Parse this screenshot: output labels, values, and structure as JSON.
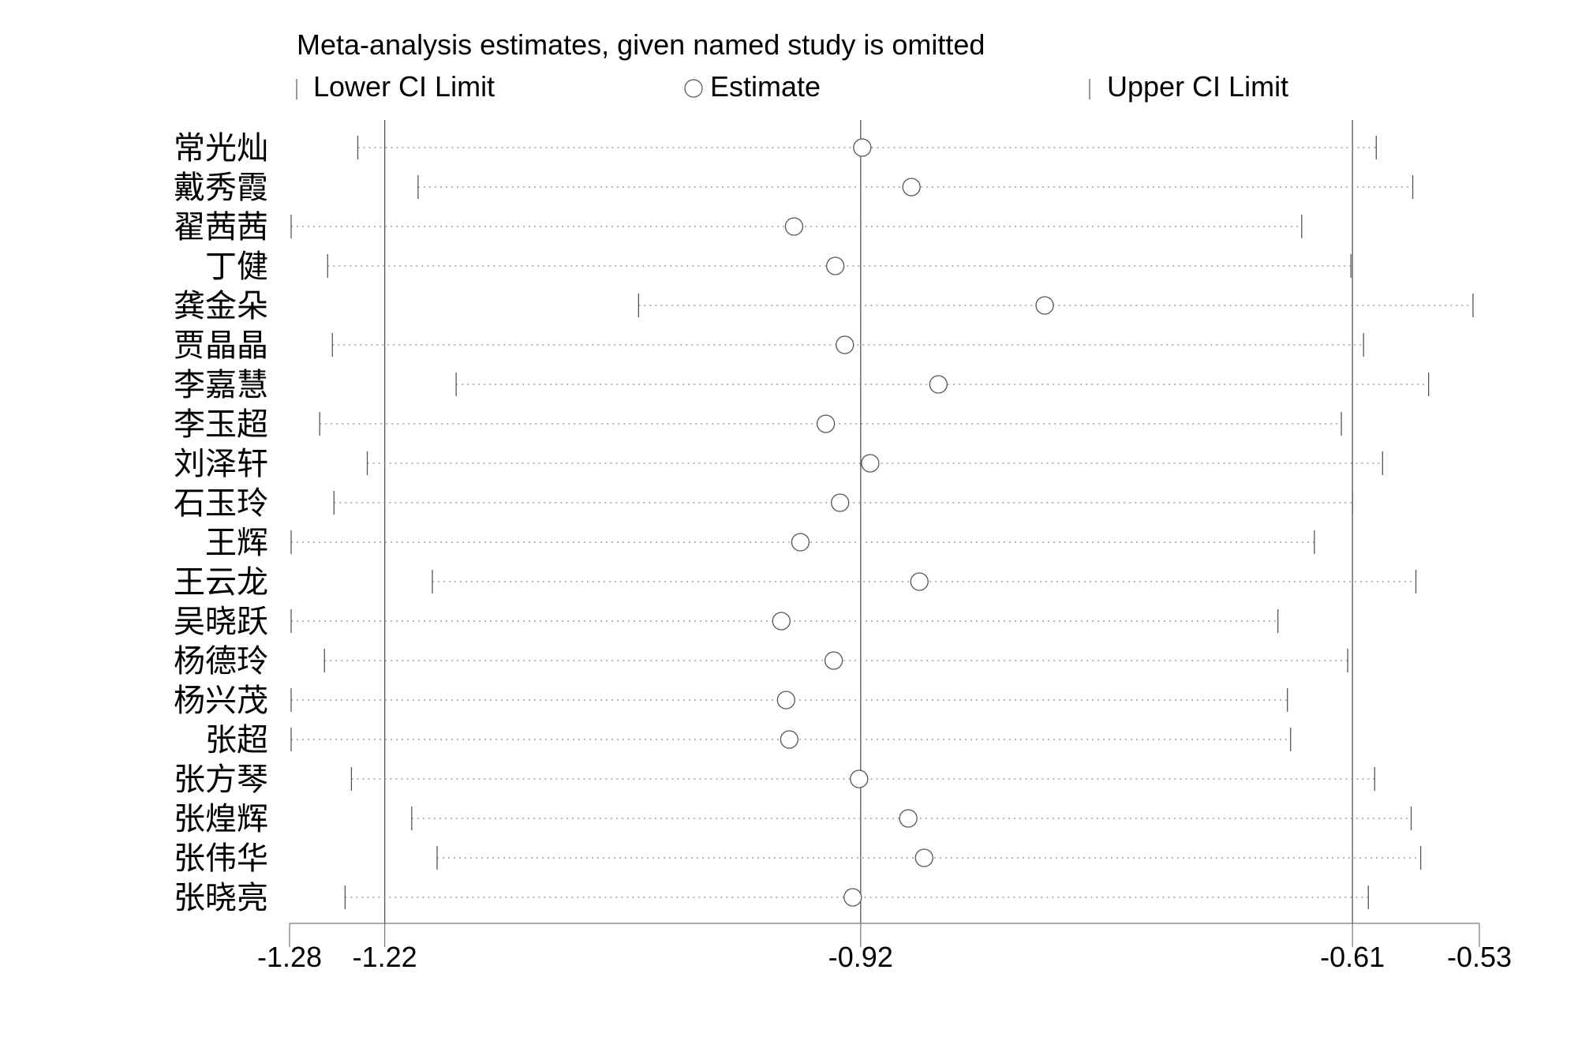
{
  "chart_data": {
    "type": "scatter",
    "title": "Meta-analysis estimates, given named study is omitted",
    "legend": {
      "placement": "top",
      "entries": [
        "Lower CI Limit",
        "Estimate",
        "Upper CI Limit"
      ]
    },
    "x_ticks": [
      -1.28,
      -1.22,
      -0.92,
      -0.61,
      -0.53
    ],
    "x_tick_labels": [
      "-1.28",
      "-1.22",
      "-0.92",
      "-0.61",
      "-0.53"
    ],
    "xlim": [
      -1.28,
      -0.53
    ],
    "reference_lines": [
      -1.22,
      -0.92,
      -0.61
    ],
    "grid": false,
    "studies": [
      {
        "name": "常光灿",
        "lower": -1.237,
        "estimate": -0.919,
        "upper": -0.595
      },
      {
        "name": "戴秀霞",
        "lower": -1.199,
        "estimate": -0.888,
        "upper": -0.572
      },
      {
        "name": "翟茜茜",
        "lower": -1.279,
        "estimate": -0.962,
        "upper": -0.642
      },
      {
        "name": "丁健",
        "lower": -1.256,
        "estimate": -0.936,
        "upper": -0.611
      },
      {
        "name": "龚金朵",
        "lower": -1.06,
        "estimate": -0.804,
        "upper": -0.534
      },
      {
        "name": "贾晶晶",
        "lower": -1.253,
        "estimate": -0.93,
        "upper": -0.603
      },
      {
        "name": "李嘉慧",
        "lower": -1.175,
        "estimate": -0.871,
        "upper": -0.562
      },
      {
        "name": "李玉超",
        "lower": -1.261,
        "estimate": -0.942,
        "upper": -0.617
      },
      {
        "name": "刘泽轩",
        "lower": -1.231,
        "estimate": -0.914,
        "upper": -0.591
      },
      {
        "name": "石玉玲",
        "lower": -1.252,
        "estimate": -0.933,
        "upper": -0.61
      },
      {
        "name": "王辉",
        "lower": -1.279,
        "estimate": -0.958,
        "upper": -0.634
      },
      {
        "name": "王云龙",
        "lower": -1.19,
        "estimate": -0.883,
        "upper": -0.57
      },
      {
        "name": "吴晓跃",
        "lower": -1.279,
        "estimate": -0.97,
        "upper": -0.657
      },
      {
        "name": "杨德玲",
        "lower": -1.258,
        "estimate": -0.937,
        "upper": -0.613
      },
      {
        "name": "杨兴茂",
        "lower": -1.279,
        "estimate": -0.967,
        "upper": -0.651
      },
      {
        "name": "张超",
        "lower": -1.279,
        "estimate": -0.965,
        "upper": -0.649
      },
      {
        "name": "张方琴",
        "lower": -1.241,
        "estimate": -0.921,
        "upper": -0.596
      },
      {
        "name": "张煌辉",
        "lower": -1.203,
        "estimate": -0.89,
        "upper": -0.573
      },
      {
        "name": "张伟华",
        "lower": -1.187,
        "estimate": -0.88,
        "upper": -0.567
      },
      {
        "name": "张晓亮",
        "lower": -1.245,
        "estimate": -0.925,
        "upper": -0.6
      }
    ]
  }
}
